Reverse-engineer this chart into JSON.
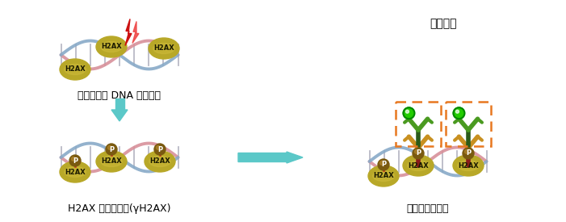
{
  "bg_color": "#ffffff",
  "label_top_left": "刺激による DNA ダメージ",
  "label_bottom_left": "H2AX のリン酸化(γH2AX)",
  "label_bottom_right": "本キットで検出",
  "label_top_right": "蛍光検出",
  "dna_color_pink": "#d8909a",
  "dna_color_blue": "#88aac8",
  "dna_color_gray": "#a8a8b8",
  "h2ax_color": "#b8a828",
  "p_ball_color": "#7a5a10",
  "p_red_link": "#cc2222",
  "arrow_color": "#5bc8c8",
  "lightning_color1": "#cc1111",
  "lightning_color2": "#ee4444",
  "ab_primary_dark": "#8B1A1A",
  "ab_primary_light": "#c89020",
  "ab_secondary_dark": "#2a5a18",
  "ab_secondary_light": "#4a9a20",
  "fluor_color": "#22cc00",
  "fluor_outline": "#008800",
  "dashed_box_color": "#e87820",
  "font_size_label": 9,
  "font_size_h2ax": 6,
  "font_size_p": 6
}
